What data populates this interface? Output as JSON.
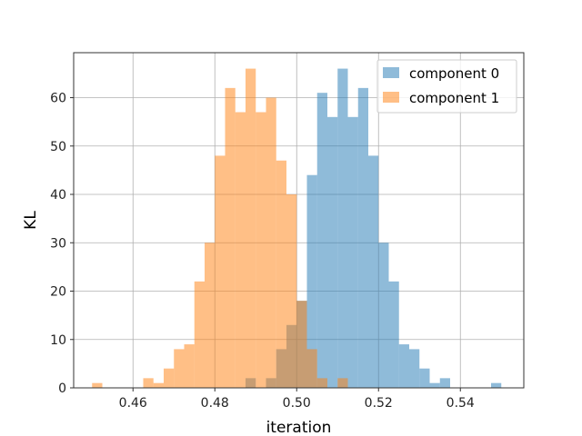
{
  "chart_data": {
    "type": "histogram",
    "title": "",
    "xlabel": "iteration",
    "ylabel": "KL",
    "xlim": [
      0.4455,
      0.5555
    ],
    "ylim": [
      0,
      69.3
    ],
    "bin_width": 0.0025,
    "x_ticks": [
      0.46,
      0.48,
      0.5,
      0.52,
      0.54
    ],
    "x_tick_labels": [
      "0.46",
      "0.48",
      "0.50",
      "0.52",
      "0.54"
    ],
    "y_ticks": [
      0,
      10,
      20,
      30,
      40,
      50,
      60
    ],
    "y_tick_labels": [
      "0",
      "10",
      "20",
      "30",
      "40",
      "50",
      "60"
    ],
    "grid": true,
    "legend_position": "top-right",
    "series": [
      {
        "name": "component 0",
        "color": "#1f77b4",
        "alpha": 0.5,
        "bins": [
          {
            "x0": 0.4875,
            "height": 2
          },
          {
            "x0": 0.4925,
            "height": 2
          },
          {
            "x0": 0.495,
            "height": 8
          },
          {
            "x0": 0.4975,
            "height": 13
          },
          {
            "x0": 0.5,
            "height": 18
          },
          {
            "x0": 0.5025,
            "height": 44
          },
          {
            "x0": 0.505,
            "height": 61
          },
          {
            "x0": 0.5075,
            "height": 56
          },
          {
            "x0": 0.51,
            "height": 66
          },
          {
            "x0": 0.5125,
            "height": 56
          },
          {
            "x0": 0.515,
            "height": 62
          },
          {
            "x0": 0.5175,
            "height": 48
          },
          {
            "x0": 0.52,
            "height": 30
          },
          {
            "x0": 0.5225,
            "height": 22
          },
          {
            "x0": 0.525,
            "height": 9
          },
          {
            "x0": 0.5275,
            "height": 8
          },
          {
            "x0": 0.53,
            "height": 4
          },
          {
            "x0": 0.5325,
            "height": 1
          },
          {
            "x0": 0.535,
            "height": 2
          },
          {
            "x0": 0.5475,
            "height": 1
          }
        ]
      },
      {
        "name": "component 1",
        "color": "#ff7f0e",
        "alpha": 0.5,
        "bins": [
          {
            "x0": 0.45,
            "height": 1
          },
          {
            "x0": 0.4625,
            "height": 2
          },
          {
            "x0": 0.465,
            "height": 1
          },
          {
            "x0": 0.4675,
            "height": 4
          },
          {
            "x0": 0.47,
            "height": 8
          },
          {
            "x0": 0.4725,
            "height": 9
          },
          {
            "x0": 0.475,
            "height": 22
          },
          {
            "x0": 0.4775,
            "height": 30
          },
          {
            "x0": 0.48,
            "height": 48
          },
          {
            "x0": 0.4825,
            "height": 62
          },
          {
            "x0": 0.485,
            "height": 57
          },
          {
            "x0": 0.4875,
            "height": 66
          },
          {
            "x0": 0.49,
            "height": 57
          },
          {
            "x0": 0.4925,
            "height": 60
          },
          {
            "x0": 0.495,
            "height": 47
          },
          {
            "x0": 0.4975,
            "height": 40
          },
          {
            "x0": 0.5,
            "height": 18
          },
          {
            "x0": 0.5025,
            "height": 8
          },
          {
            "x0": 0.505,
            "height": 2
          },
          {
            "x0": 0.51,
            "height": 2
          }
        ]
      }
    ]
  }
}
